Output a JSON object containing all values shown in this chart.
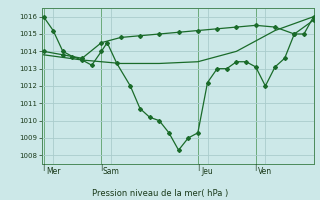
{
  "xlabel": "Pression niveau de la mer( hPa )",
  "ylim": [
    1007.5,
    1016.5
  ],
  "yticks": [
    1008,
    1009,
    1010,
    1011,
    1012,
    1013,
    1014,
    1015,
    1016
  ],
  "bg_color": "#cce8e8",
  "grid_color": "#aacccc",
  "line_color": "#1a6b2a",
  "day_labels": [
    "Mer",
    "Sam",
    "Jeu",
    "Ven"
  ],
  "day_positions": [
    0.5,
    3.5,
    8.5,
    11.5
  ],
  "vline_x": [
    0,
    3,
    8,
    11,
    14
  ],
  "xlim": [
    -0.1,
    14
  ],
  "line_wavy_x": [
    0,
    0.5,
    1,
    1.5,
    2,
    2.5,
    3,
    3.3,
    3.8,
    4.5,
    5,
    5.5,
    6,
    6.5,
    7,
    7.5,
    8,
    8.5,
    9,
    9.5,
    10,
    10.5,
    11,
    11.5,
    12,
    12.5,
    13,
    13.5,
    14
  ],
  "line_wavy_y": [
    1016,
    1015.2,
    1014,
    1013.7,
    1013.5,
    1013.2,
    1014,
    1014.5,
    1013.3,
    1012.0,
    1010.7,
    1010.2,
    1010.0,
    1009.3,
    1008.3,
    1009.0,
    1009.3,
    1012.2,
    1013.0,
    1013.0,
    1013.4,
    1013.4,
    1013.1,
    1012.0,
    1013.1,
    1013.6,
    1015.0,
    1015.0,
    1016.0
  ],
  "line_top_x": [
    0,
    1,
    2,
    3,
    4,
    5,
    6,
    7,
    8,
    9,
    10,
    11,
    12,
    13,
    14
  ],
  "line_top_y": [
    1014,
    1013.8,
    1013.6,
    1014.5,
    1014.8,
    1014.9,
    1015.0,
    1015.1,
    1015.2,
    1015.3,
    1015.4,
    1015.5,
    1015.4,
    1015.0,
    1015.8
  ],
  "line_smooth_x": [
    0,
    2,
    4,
    6,
    8,
    10,
    12,
    14
  ],
  "line_smooth_y": [
    1013.8,
    1013.5,
    1013.3,
    1013.3,
    1013.4,
    1014.0,
    1015.2,
    1016.0
  ]
}
